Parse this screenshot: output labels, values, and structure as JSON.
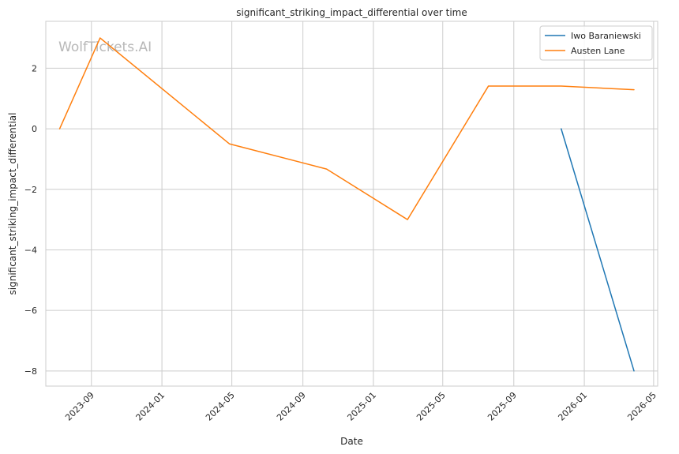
{
  "chart_data": {
    "type": "line",
    "title": "significant_striking_impact_differential over time",
    "xlabel": "Date",
    "ylabel": "significant_striking_impact_differential",
    "watermark": "WolfTickets.AI",
    "x_ticks": [
      "2023-09",
      "2024-01",
      "2024-05",
      "2024-09",
      "2025-01",
      "2025-05",
      "2025-09",
      "2026-01",
      "2026-05"
    ],
    "y_ticks": [
      2,
      0,
      -2,
      -4,
      -6,
      -8
    ],
    "y_tick_labels": [
      "2",
      "0",
      "−2",
      "−4",
      "−6",
      "−8"
    ],
    "xlim": [
      "2023-06-14",
      "2026-05-08"
    ],
    "ylim": [
      -8.5,
      3.55
    ],
    "grid": true,
    "legend": "top-right",
    "series": [
      {
        "name": "Iwo Baraniewski",
        "color": "#1f77b4",
        "points": [
          {
            "x": "2025-11-22",
            "y": 0
          },
          {
            "x": "2026-03-28",
            "y": -8
          }
        ]
      },
      {
        "name": "Austen Lane",
        "color": "#ff7f0e",
        "points": [
          {
            "x": "2023-07-08",
            "y": 0
          },
          {
            "x": "2023-09-16",
            "y": 3
          },
          {
            "x": "2024-04-27",
            "y": -0.5
          },
          {
            "x": "2024-10-12",
            "y": -1.33
          },
          {
            "x": "2025-03-01",
            "y": -3
          },
          {
            "x": "2025-07-19",
            "y": 1.41
          },
          {
            "x": "2025-11-22",
            "y": 1.41
          },
          {
            "x": "2026-03-28",
            "y": 1.29
          }
        ]
      }
    ]
  }
}
